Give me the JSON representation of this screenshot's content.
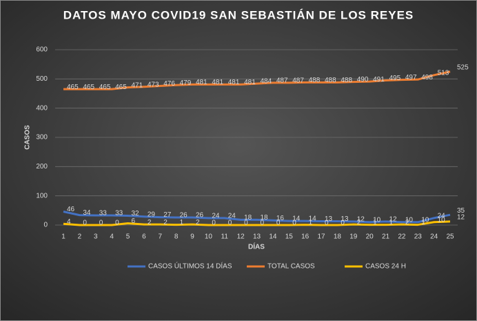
{
  "chart_data": {
    "type": "line",
    "title": "DATOS MAYO COVID19 SAN SEBASTIÁN DE LOS REYES",
    "y_label": "CASOS",
    "x_label": "DÍAS",
    "categories": [
      "1",
      "2",
      "3",
      "4",
      "5",
      "6",
      "7",
      "8",
      "9",
      "10",
      "11",
      "12",
      "13",
      "14",
      "15",
      "16",
      "17",
      "18",
      "19",
      "20",
      "21",
      "22",
      "23",
      "24",
      "25"
    ],
    "series": [
      {
        "name": "CASOS ÚLTIMOS 14 DÍAS",
        "color": "#4472c4",
        "values": [
          46,
          34,
          33,
          33,
          32,
          29,
          27,
          26,
          26,
          24,
          24,
          18,
          18,
          16,
          14,
          14,
          13,
          13,
          12,
          10,
          12,
          10,
          10,
          24,
          35
        ]
      },
      {
        "name": "TOTAL CASOS",
        "color": "#ed7d31",
        "values": [
          465,
          465,
          465,
          465,
          471,
          473,
          476,
          479,
          481,
          481,
          481,
          481,
          484,
          487,
          487,
          488,
          488,
          488,
          490,
          491,
          495,
          497,
          498,
          513,
          525
        ]
      },
      {
        "name": "CASOS 24 H",
        "color": "#ffc000",
        "values": [
          4,
          0,
          0,
          0,
          6,
          2,
          2,
          1,
          2,
          0,
          0,
          0,
          0,
          0,
          0,
          1,
          0,
          0,
          2,
          1,
          1,
          2,
          1,
          10,
          12
        ]
      }
    ],
    "ylim": [
      0,
      600
    ],
    "yticks": [
      0,
      100,
      200,
      300,
      400,
      500,
      600
    ],
    "grid": true,
    "legend": "bottom"
  }
}
